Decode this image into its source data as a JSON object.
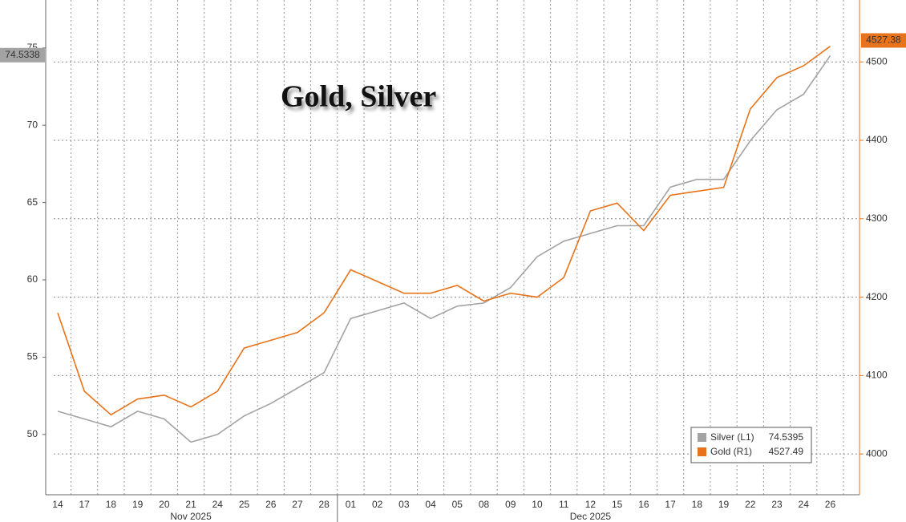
{
  "chart_data": {
    "type": "line",
    "title": "Gold, Silver",
    "categories": [
      "14",
      "17",
      "18",
      "19",
      "20",
      "21",
      "24",
      "25",
      "26",
      "27",
      "28",
      "01",
      "02",
      "03",
      "04",
      "05",
      "08",
      "09",
      "10",
      "11",
      "12",
      "15",
      "16",
      "17",
      "18",
      "19",
      "22",
      "23",
      "24",
      "26"
    ],
    "period_labels": [
      "Nov 2025",
      "Dec 2025"
    ],
    "series": [
      {
        "name": "Silver (L1)",
        "color": "#a3a3a3",
        "axis": "y",
        "values": [
          51.5,
          51,
          50.5,
          51.5,
          51,
          49.5,
          50,
          51.2,
          52,
          53,
          54,
          57.5,
          58,
          58.5,
          57.5,
          58.3,
          58.5,
          59.5,
          61.5,
          62.5,
          63,
          63.5,
          63.5,
          66,
          66.5,
          66.5,
          69,
          71,
          72,
          74.5
        ],
        "last_value": 74.5338,
        "legend_value": 74.5395
      },
      {
        "name": "Gold (R1)",
        "color": "#e8731a",
        "axis": "y2",
        "values": [
          4180,
          4080,
          4050,
          4070,
          4075,
          4060,
          4080,
          4135,
          4145,
          4155,
          4180,
          4235,
          4220,
          4205,
          4205,
          4215,
          4195,
          4205,
          4200,
          4225,
          4310,
          4320,
          4285,
          4330,
          4335,
          4340,
          4440,
          4480,
          4495,
          4520
        ],
        "last_value": 4527.38,
        "legend_value": 4527.49
      }
    ],
    "ylim": [
      46.1,
      78.1
    ],
    "yticks": [
      50,
      55,
      60,
      65,
      70,
      75
    ],
    "y2lim": [
      3948,
      4579
    ],
    "y2ticks": [
      4000,
      4100,
      4200,
      4300,
      4400,
      4500
    ],
    "grid": true
  }
}
